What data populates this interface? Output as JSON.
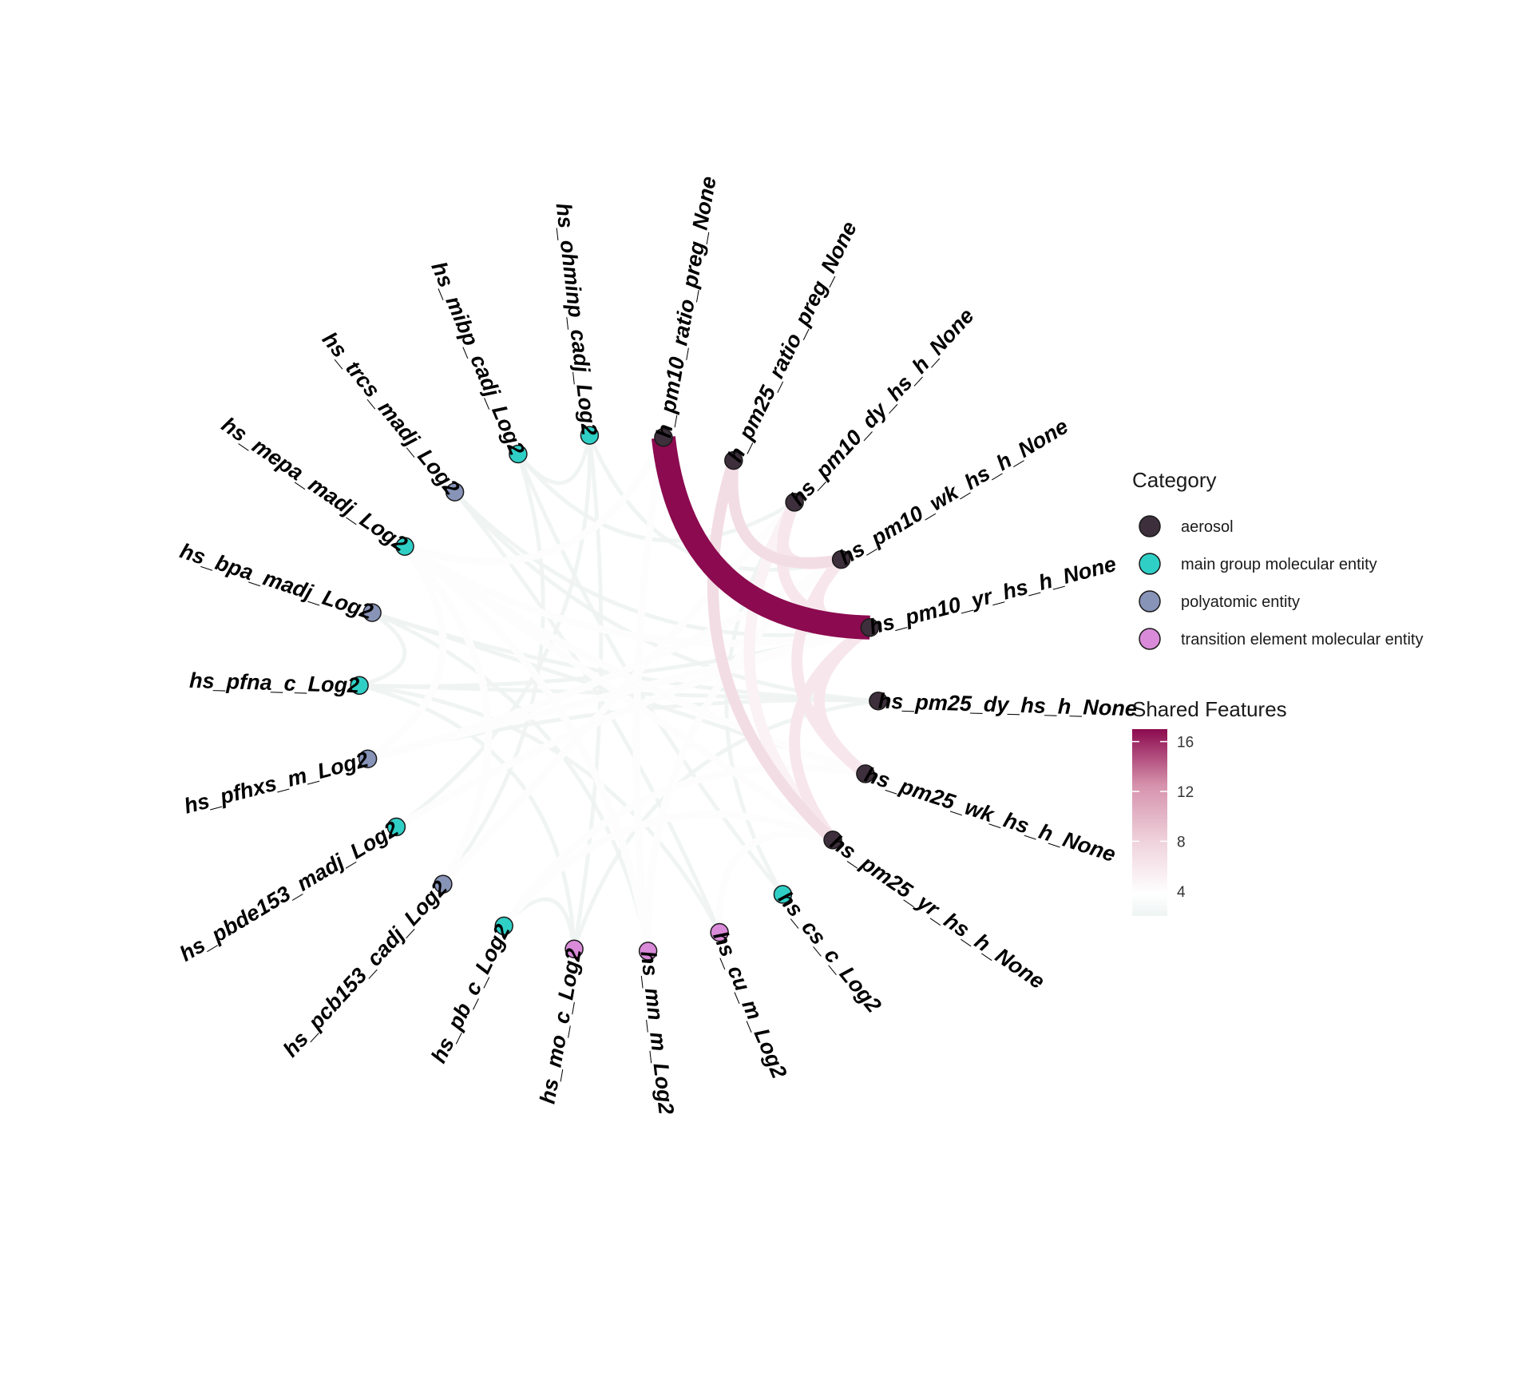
{
  "diagram": {
    "type": "chord",
    "nodes": [
      {
        "id": "h_pm10_ratio_preg_None",
        "category": "aerosol"
      },
      {
        "id": "h_pm25_ratio_preg_None",
        "category": "aerosol"
      },
      {
        "id": "hs_pm10_dy_hs_h_None",
        "category": "aerosol"
      },
      {
        "id": "hs_pm10_wk_hs_h_None",
        "category": "aerosol"
      },
      {
        "id": "hs_pm10_yr_hs_h_None",
        "category": "aerosol"
      },
      {
        "id": "hs_pm25_dy_hs_h_None",
        "category": "aerosol"
      },
      {
        "id": "hs_pm25_wk_hs_h_None",
        "category": "aerosol"
      },
      {
        "id": "hs_pm25_yr_hs_h_None",
        "category": "aerosol"
      },
      {
        "id": "hs_cs_c_Log2",
        "category": "main group molecular entity"
      },
      {
        "id": "hs_cu_m_Log2",
        "category": "transition element molecular entity"
      },
      {
        "id": "hs_mn_m_Log2",
        "category": "transition element molecular entity"
      },
      {
        "id": "hs_mo_c_Log2",
        "category": "transition element molecular entity"
      },
      {
        "id": "hs_pb_c_Log2",
        "category": "main group molecular entity"
      },
      {
        "id": "hs_pcb153_cadj_Log2",
        "category": "polyatomic entity"
      },
      {
        "id": "hs_pbde153_madj_Log2",
        "category": "main group molecular entity"
      },
      {
        "id": "hs_pfhxs_m_Log2",
        "category": "polyatomic entity"
      },
      {
        "id": "hs_pfna_c_Log2",
        "category": "main group molecular entity"
      },
      {
        "id": "hs_bpa_madj_Log2",
        "category": "polyatomic entity"
      },
      {
        "id": "hs_mepa_madj_Log2",
        "category": "main group molecular entity"
      },
      {
        "id": "hs_trcs_madj_Log2",
        "category": "polyatomic entity"
      },
      {
        "id": "hs_mibp_cadj_Log2",
        "category": "main group molecular entity"
      },
      {
        "id": "hs_ohminp_cadj_Log2",
        "category": "main group molecular entity"
      }
    ],
    "edges": [
      {
        "source": "h_pm10_ratio_preg_None",
        "target": "hs_pm10_yr_hs_h_None",
        "value": 17
      },
      {
        "source": "h_pm25_ratio_preg_None",
        "target": "hs_pm10_wk_hs_h_None",
        "value": 7
      },
      {
        "source": "h_pm25_ratio_preg_None",
        "target": "hs_pm25_yr_hs_h_None",
        "value": 7
      },
      {
        "source": "hs_pm10_dy_hs_h_None",
        "target": "hs_pm10_wk_hs_h_None",
        "value": 6
      },
      {
        "source": "hs_pm10_dy_hs_h_None",
        "target": "hs_pm10_yr_hs_h_None",
        "value": 6
      },
      {
        "source": "hs_pm10_wk_hs_h_None",
        "target": "hs_pm10_yr_hs_h_None",
        "value": 6
      },
      {
        "source": "hs_pm10_wk_hs_h_None",
        "target": "hs_pm25_wk_hs_h_None",
        "value": 6
      },
      {
        "source": "hs_pm10_yr_hs_h_None",
        "target": "hs_pm25_wk_hs_h_None",
        "value": 6
      },
      {
        "source": "hs_pm10_yr_hs_h_None",
        "target": "hs_pm25_yr_hs_h_None",
        "value": 6
      },
      {
        "source": "hs_pm10_dy_hs_h_None",
        "target": "hs_pm25_yr_hs_h_None",
        "value": 5
      },
      {
        "source": "hs_mepa_madj_Log2",
        "target": "h_pm10_ratio_preg_None",
        "value": 4
      },
      {
        "source": "hs_mepa_madj_Log2",
        "target": "hs_pm10_yr_hs_h_None",
        "value": 4
      },
      {
        "source": "hs_mepa_madj_Log2",
        "target": "hs_pm25_wk_hs_h_None",
        "value": 4
      },
      {
        "source": "hs_mepa_madj_Log2",
        "target": "hs_pm25_yr_hs_h_None",
        "value": 4
      },
      {
        "source": "hs_mepa_madj_Log2",
        "target": "hs_pcb153_cadj_Log2",
        "value": 4
      },
      {
        "source": "hs_mepa_madj_Log2",
        "target": "hs_pfhxs_m_Log2",
        "value": 4
      },
      {
        "source": "hs_mepa_madj_Log2",
        "target": "hs_mn_m_Log2",
        "value": 4
      },
      {
        "source": "h_pm10_ratio_preg_None",
        "target": "hs_mn_m_Log2",
        "value": 4
      },
      {
        "source": "hs_pm10_wk_hs_h_None",
        "target": "hs_mn_m_Log2",
        "value": 4
      },
      {
        "source": "hs_pm25_yr_hs_h_None",
        "target": "hs_cu_m_Log2",
        "value": 4
      },
      {
        "source": "hs_pm25_yr_hs_h_None",
        "target": "hs_pb_c_Log2",
        "value": 4
      },
      {
        "source": "hs_pm10_yr_hs_h_None",
        "target": "hs_pbde153_madj_Log2",
        "value": 4
      },
      {
        "source": "hs_pm10_wk_hs_h_None",
        "target": "hs_pfhxs_m_Log2",
        "value": 4
      },
      {
        "source": "hs_pm10_dy_hs_h_None",
        "target": "hs_pcb153_cadj_Log2",
        "value": 4
      },
      {
        "source": "hs_pm25_wk_hs_h_None",
        "target": "hs_pb_c_Log2",
        "value": 4
      },
      {
        "source": "hs_pm10_yr_hs_h_None",
        "target": "hs_pfhxs_m_Log2",
        "value": 4
      },
      {
        "source": "hs_mibp_cadj_Log2",
        "target": "hs_pm10_dy_hs_h_None",
        "value": 2
      },
      {
        "source": "hs_ohminp_cadj_Log2",
        "target": "hs_pm10_wk_hs_h_None",
        "value": 2
      },
      {
        "source": "hs_mibp_cadj_Log2",
        "target": "hs_ohminp_cadj_Log2",
        "value": 2
      },
      {
        "source": "hs_trcs_madj_Log2",
        "target": "hs_cu_m_Log2",
        "value": 2
      },
      {
        "source": "hs_bpa_madj_Log2",
        "target": "hs_pm25_wk_hs_h_None",
        "value": 2
      },
      {
        "source": "hs_bpa_madj_Log2",
        "target": "hs_pm25_dy_hs_h_None",
        "value": 2
      },
      {
        "source": "hs_pfna_c_Log2",
        "target": "hs_pm10_yr_hs_h_None",
        "value": 2
      },
      {
        "source": "hs_pfna_c_Log2",
        "target": "hs_pm25_dy_hs_h_None",
        "value": 2
      },
      {
        "source": "hs_pfna_c_Log2",
        "target": "hs_bpa_madj_Log2",
        "value": 2
      },
      {
        "source": "hs_pfhxs_m_Log2",
        "target": "hs_pm25_dy_hs_h_None",
        "value": 2
      },
      {
        "source": "hs_pbde153_madj_Log2",
        "target": "hs_ohminp_cadj_Log2",
        "value": 2
      },
      {
        "source": "hs_pcb153_cadj_Log2",
        "target": "hs_mibp_cadj_Log2",
        "value": 2
      },
      {
        "source": "hs_pb_c_Log2",
        "target": "hs_mo_c_Log2",
        "value": 2
      },
      {
        "source": "hs_mo_c_Log2",
        "target": "hs_ohminp_cadj_Log2",
        "value": 2
      },
      {
        "source": "hs_mo_c_Log2",
        "target": "hs_pm25_dy_hs_h_None",
        "value": 2
      },
      {
        "source": "hs_cs_c_Log2",
        "target": "hs_pm10_dy_hs_h_None",
        "value": 2
      },
      {
        "source": "hs_cs_c_Log2",
        "target": "hs_mibp_cadj_Log2",
        "value": 2
      },
      {
        "source": "hs_cu_m_Log2",
        "target": "hs_pfna_c_Log2",
        "value": 2
      },
      {
        "source": "hs_trcs_madj_Log2",
        "target": "hs_pm25_dy_hs_h_None",
        "value": 2
      },
      {
        "source": "hs_bpa_madj_Log2",
        "target": "hs_mn_m_Log2",
        "value": 2
      },
      {
        "source": "hs_pfna_c_Log2",
        "target": "hs_mo_c_Log2",
        "value": 2
      },
      {
        "source": "hs_trcs_madj_Log2",
        "target": "hs_pm10_yr_hs_h_None",
        "value": 2
      }
    ]
  },
  "legend": {
    "category_title": "Category",
    "categories": [
      {
        "label": "aerosol",
        "color": "#3d2f3b"
      },
      {
        "label": "main group molecular entity",
        "color": "#2fcfc6"
      },
      {
        "label": "polyatomic entity",
        "color": "#8893b8"
      },
      {
        "label": "transition element molecular entity",
        "color": "#d98ad8"
      }
    ],
    "gradient_title": "Shared Features",
    "gradient_ticks": [
      16,
      12,
      8,
      4
    ],
    "gradient_range": [
      2,
      17
    ],
    "gradient_colors": [
      "#eef4f3",
      "#ffffff",
      "#efd2dc",
      "#d692ac",
      "#8c0a4f"
    ]
  }
}
